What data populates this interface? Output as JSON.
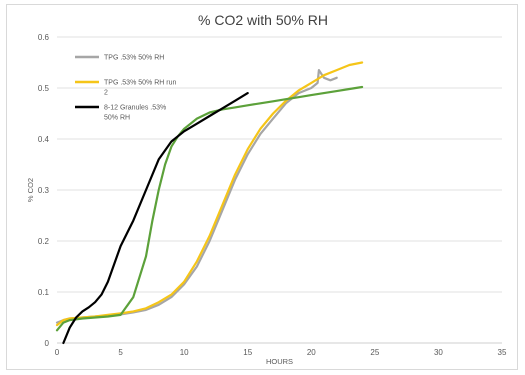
{
  "chart_data": {
    "type": "line",
    "title": "% CO2  with 50% RH",
    "xlabel": "HOURS",
    "ylabel": "% CO2",
    "xlim": [
      0,
      35
    ],
    "ylim": [
      0,
      0.6
    ],
    "x_ticks": [
      "0",
      "5",
      "10",
      "15",
      "20",
      "25",
      "30",
      "35"
    ],
    "y_ticks": [
      "0",
      "0.1",
      "0.2",
      "0.3",
      "0.4",
      "0.5",
      "0.6"
    ],
    "grid": "horizontal",
    "legend_position": "top-left",
    "series": [
      {
        "name": "TPG .53% 50% RH",
        "color": "#a6a6a6",
        "x": [
          0,
          0.5,
          1,
          2,
          3,
          4,
          5,
          6,
          7,
          8,
          9,
          10,
          11,
          12,
          13,
          14,
          15,
          16,
          17,
          18,
          19,
          20,
          20.5,
          20.6,
          21,
          21.5,
          22
        ],
        "y": [
          0.04,
          0.045,
          0.048,
          0.05,
          0.052,
          0.054,
          0.056,
          0.06,
          0.065,
          0.075,
          0.09,
          0.115,
          0.15,
          0.2,
          0.26,
          0.32,
          0.37,
          0.41,
          0.44,
          0.47,
          0.49,
          0.5,
          0.51,
          0.535,
          0.52,
          0.515,
          0.52
        ]
      },
      {
        "name": "TPG .53% 50% RH run 2",
        "color": "#f5c518",
        "x": [
          0,
          0.5,
          1,
          2,
          3,
          4,
          5,
          6,
          7,
          8,
          9,
          10,
          11,
          12,
          13,
          14,
          15,
          16,
          17,
          18,
          19,
          20,
          21,
          22,
          23,
          24
        ],
        "y": [
          0.035,
          0.045,
          0.048,
          0.05,
          0.052,
          0.055,
          0.058,
          0.062,
          0.068,
          0.08,
          0.095,
          0.12,
          0.16,
          0.21,
          0.27,
          0.33,
          0.38,
          0.42,
          0.45,
          0.475,
          0.495,
          0.51,
          0.525,
          0.535,
          0.545,
          0.55
        ]
      },
      {
        "name": "8-12 Granules .53% 50% RH",
        "color": "#5ca13a",
        "x": [
          0,
          0.5,
          1,
          2,
          3,
          4,
          5,
          6,
          7,
          7.5,
          8,
          8.5,
          9,
          9.5,
          10,
          11,
          12,
          13,
          14,
          15,
          16,
          17,
          18,
          19,
          20,
          21,
          22,
          23,
          24
        ],
        "y": [
          0.025,
          0.04,
          0.045,
          0.048,
          0.05,
          0.052,
          0.055,
          0.09,
          0.17,
          0.24,
          0.3,
          0.35,
          0.385,
          0.405,
          0.42,
          0.44,
          0.452,
          0.458,
          0.462,
          0.466,
          0.47,
          0.474,
          0.478,
          0.482,
          0.486,
          0.49,
          0.494,
          0.498,
          0.502
        ]
      },
      {
        "name": "8-12 Granules .53% 50% RH",
        "color": "#000000",
        "x": [
          0.5,
          1,
          1.5,
          2,
          2.5,
          3,
          3.5,
          4,
          5,
          6,
          7,
          8,
          9,
          10,
          11,
          12,
          13,
          14,
          15
        ],
        "y": [
          0.0,
          0.03,
          0.05,
          0.062,
          0.07,
          0.08,
          0.095,
          0.12,
          0.19,
          0.24,
          0.3,
          0.36,
          0.395,
          0.415,
          0.43,
          0.445,
          0.46,
          0.475,
          0.49
        ]
      }
    ],
    "legend": [
      {
        "lines": [
          "TPG .53% 50% RH"
        ],
        "color": "#a6a6a6"
      },
      {
        "lines": [
          "TPG .53% 50% RH run",
          "2"
        ],
        "color": "#f5c518"
      },
      {
        "lines": [
          "8-12 Granules .53%",
          "50% RH"
        ],
        "color": "#000000"
      }
    ]
  }
}
